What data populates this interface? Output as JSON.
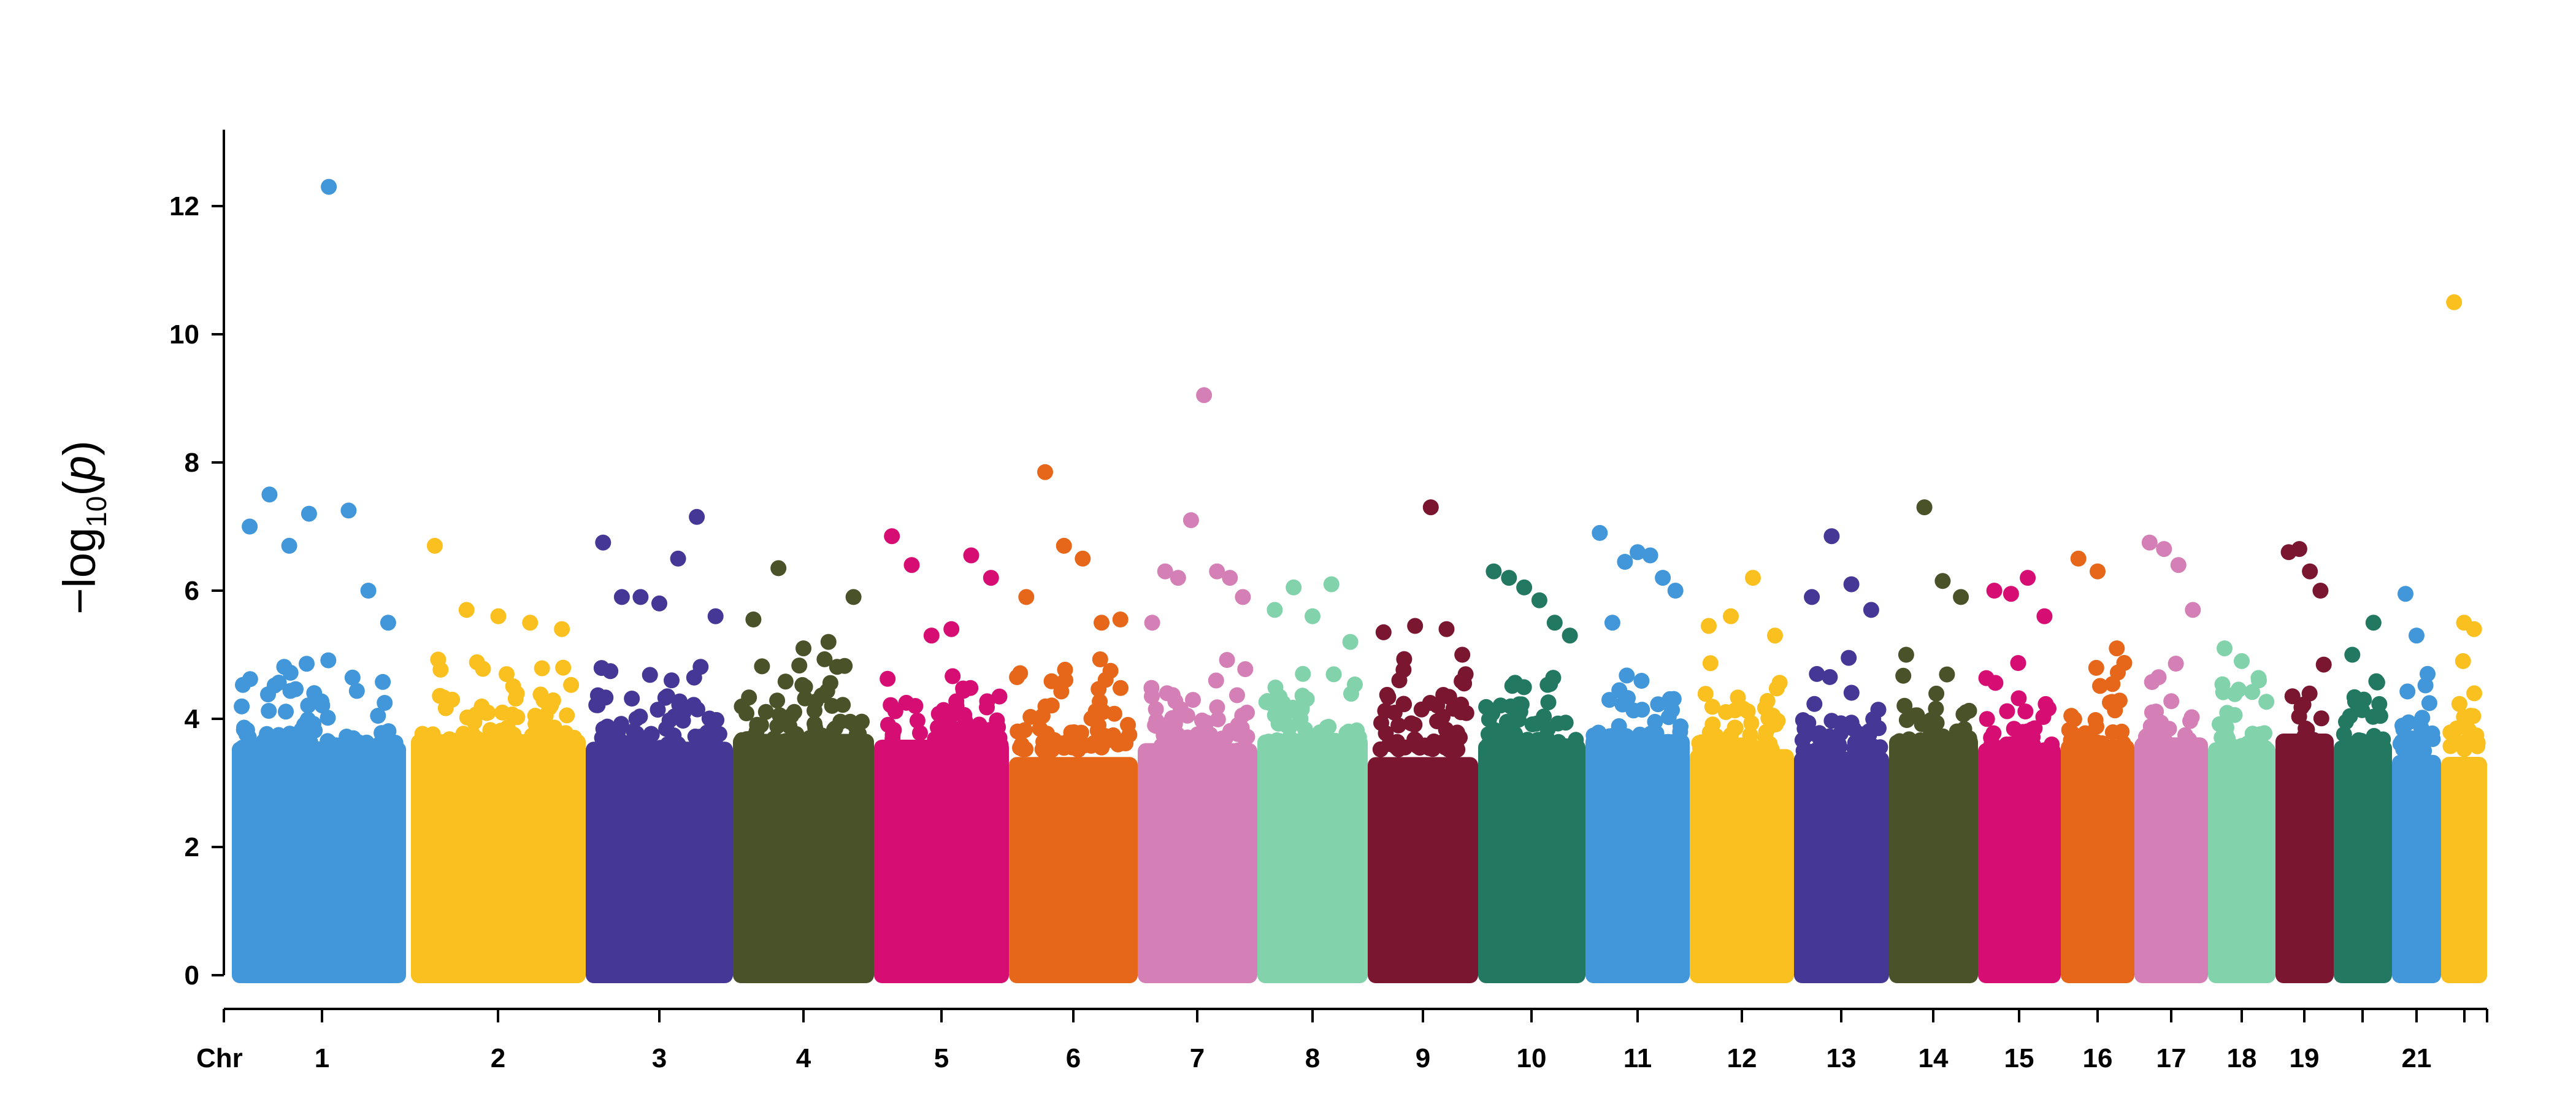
{
  "chart_data": {
    "type": "scatter",
    "title": "",
    "xlabel": "Chr",
    "ylabel": {
      "prefix": "−log",
      "sub": "10",
      "open": "(",
      "var": "p",
      "close": ")"
    },
    "ylim": [
      0,
      13
    ],
    "yticks": [
      "0",
      "2",
      "4",
      "6",
      "8",
      "10",
      "12"
    ],
    "grid": false,
    "legend": "none",
    "chromosomes": [
      {
        "chr": "1",
        "label": "1",
        "color": "#4197D9",
        "peaks": [
          7.0,
          7.5,
          6.7,
          7.2,
          12.3,
          7.25,
          6.0,
          5.5
        ]
      },
      {
        "chr": "2",
        "label": "2",
        "color": "#F9C01F",
        "peaks": [
          6.7,
          5.7,
          5.6,
          5.5,
          5.4
        ]
      },
      {
        "chr": "3",
        "label": "3",
        "color": "#453795",
        "peaks": [
          6.75,
          5.9,
          5.9,
          5.8,
          6.5,
          7.15,
          5.6
        ]
      },
      {
        "chr": "4",
        "label": "4",
        "color": "#4A5229",
        "peaks": [
          5.55,
          6.35,
          5.1,
          5.2,
          5.9
        ]
      },
      {
        "chr": "5",
        "label": "5",
        "color": "#D60E73",
        "peaks": [
          6.85,
          6.4,
          5.3,
          5.4,
          6.55,
          6.2
        ]
      },
      {
        "chr": "6",
        "label": "6",
        "color": "#E6661A",
        "peaks": [
          5.9,
          7.85,
          6.7,
          6.5,
          5.5,
          5.55
        ]
      },
      {
        "chr": "7",
        "label": "7",
        "color": "#D480B6",
        "peaks": [
          5.5,
          6.3,
          6.2,
          7.1,
          9.05,
          6.3,
          6.2,
          5.9
        ]
      },
      {
        "chr": "8",
        "label": "8",
        "color": "#82D3AB",
        "peaks": [
          5.7,
          6.05,
          5.6,
          6.1,
          5.2
        ]
      },
      {
        "chr": "9",
        "label": "9",
        "color": "#7A1630",
        "peaks": [
          5.35,
          4.6,
          5.45,
          7.3,
          5.4,
          5.0
        ]
      },
      {
        "chr": "10",
        "label": "10",
        "color": "#237862",
        "peaks": [
          6.3,
          6.2,
          6.05,
          5.85,
          5.5,
          5.3
        ]
      },
      {
        "chr": "11",
        "label": "11",
        "color": "#4197D9",
        "peaks": [
          6.9,
          5.5,
          6.45,
          6.6,
          6.55,
          6.2,
          6.0
        ]
      },
      {
        "chr": "12",
        "label": "12",
        "color": "#F9C01F",
        "peaks": [
          5.45,
          5.6,
          6.2,
          5.3
        ]
      },
      {
        "chr": "13",
        "label": "13",
        "color": "#453795",
        "peaks": [
          5.9,
          6.85,
          6.1,
          5.7
        ]
      },
      {
        "chr": "14",
        "label": "14",
        "color": "#4A5229",
        "peaks": [
          5.0,
          7.3,
          6.15,
          5.9
        ]
      },
      {
        "chr": "15",
        "label": "15",
        "color": "#D60E73",
        "peaks": [
          6.0,
          5.95,
          6.2,
          5.6
        ]
      },
      {
        "chr": "16",
        "label": "16",
        "color": "#E6661A",
        "peaks": [
          6.5,
          6.3,
          5.1
        ]
      },
      {
        "chr": "17",
        "label": "17",
        "color": "#D480B6",
        "peaks": [
          6.75,
          6.65,
          6.4,
          5.7
        ]
      },
      {
        "chr": "18",
        "label": "18",
        "color": "#82D3AB",
        "peaks": [
          5.1,
          4.9,
          4.6
        ]
      },
      {
        "chr": "19",
        "label": "19",
        "color": "#7A1630",
        "peaks": [
          6.6,
          6.65,
          6.3,
          6.0
        ]
      },
      {
        "chr": "20",
        "label": "",
        "color": "#237862",
        "peaks": [
          5.0,
          5.5
        ]
      },
      {
        "chr": "21",
        "label": "21",
        "color": "#4197D9",
        "peaks": [
          5.95,
          5.3,
          4.7
        ]
      },
      {
        "chr": "22",
        "label": "",
        "color": "#F9C01F",
        "peaks": [
          10.5,
          5.5,
          5.4
        ]
      }
    ]
  }
}
